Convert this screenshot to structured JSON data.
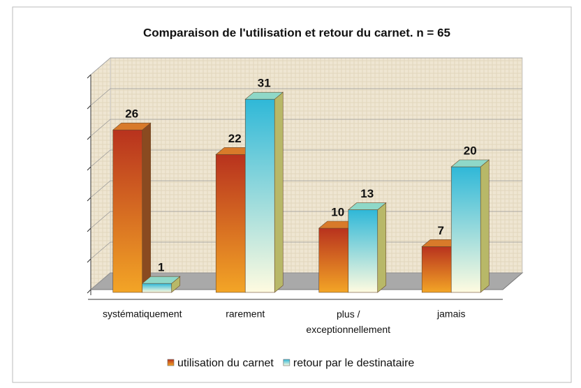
{
  "chart_data": {
    "type": "bar3d",
    "title": "Comparaison de l'utilisation et retour du carnet. n = 65",
    "categories": [
      "systématiquement",
      "rarement",
      "plus / exceptionnellement",
      "jamais"
    ],
    "series": [
      {
        "name": "utilisation du carnet",
        "color": "#b8321e",
        "values": [
          26,
          22,
          10,
          7
        ]
      },
      {
        "name": "retour par le destinataire",
        "color": "#2fb8d8",
        "values": [
          1,
          31,
          13,
          20
        ]
      }
    ],
    "ylim": [
      0,
      35
    ],
    "yticks": [
      0,
      5,
      10,
      15,
      20,
      25,
      30,
      35
    ],
    "tick_labels": false,
    "grid": true,
    "legend": "bottom"
  }
}
